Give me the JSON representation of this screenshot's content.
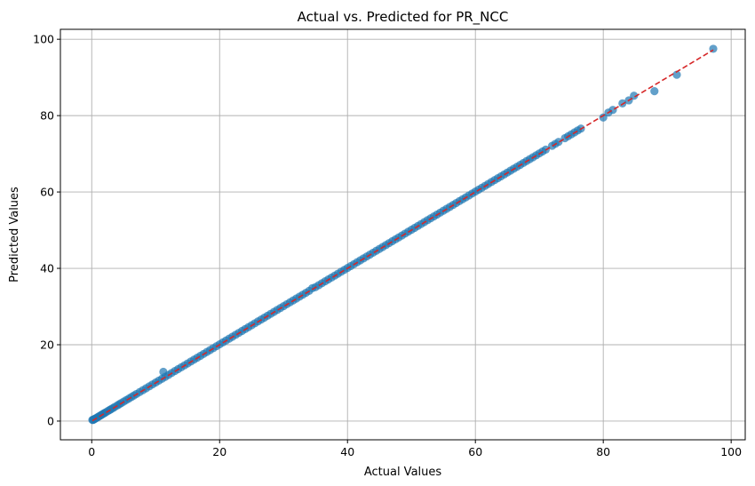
{
  "chart_data": {
    "type": "scatter",
    "title": "Actual vs. Predicted for PR_NCC",
    "xlabel": "Actual Values",
    "ylabel": "Predicted Values",
    "xlim": [
      -4.9,
      102.2
    ],
    "ylim": [
      -4.9,
      102.6
    ],
    "xticks": [
      0,
      20,
      40,
      60,
      80,
      100
    ],
    "yticks": [
      0,
      20,
      40,
      60,
      80,
      100
    ],
    "grid": true,
    "colors": {
      "points": "#1f77b4",
      "reference": "#d62728",
      "grid": "#b0b0b0"
    },
    "series": [
      {
        "kind": "points",
        "x": [
          0.1,
          0.2,
          0.3,
          0.4,
          0.5,
          0.6,
          0.8,
          1.0,
          1.2,
          1.4,
          1.6,
          1.8,
          2.0,
          2.2,
          2.5,
          2.8,
          3.0,
          3.3,
          3.6,
          4.0,
          4.3,
          4.6,
          5.0,
          5.4,
          5.8,
          6.2,
          6.6,
          7.0,
          7.5,
          8.0,
          8.5,
          9.0,
          9.5,
          10.0,
          10.5,
          11.0,
          11.2,
          11.5,
          12.0,
          12.5,
          13.0,
          13.5,
          14.0,
          14.5,
          15.0,
          15.5,
          16.0,
          16.5,
          17.0,
          17.5,
          18.0,
          18.5,
          19.0,
          19.5,
          20.0,
          20.5,
          21.0,
          21.5,
          22.0,
          22.5,
          23.0,
          23.5,
          24.0,
          24.5,
          25.0,
          25.5,
          26.0,
          26.5,
          27.0,
          27.5,
          28.0,
          28.5,
          29.0,
          29.5,
          30.0,
          30.5,
          31.0,
          31.5,
          32.0,
          32.5,
          33.0,
          33.5,
          34.0,
          34.5,
          35.0,
          35.5,
          36.0,
          36.5,
          37.0,
          37.5,
          38.0,
          38.5,
          39.0,
          39.5,
          40.0,
          40.5,
          41.0,
          41.5,
          42.0,
          42.5,
          43.0,
          43.5,
          44.0,
          44.5,
          45.0,
          45.5,
          46.0,
          46.5,
          47.0,
          47.5,
          48.0,
          48.5,
          49.0,
          49.5,
          50.0,
          50.5,
          51.0,
          51.5,
          52.0,
          52.5,
          53.0,
          53.5,
          54.0,
          54.5,
          55.0,
          55.5,
          56.0,
          56.5,
          57.0,
          57.5,
          58.0,
          58.5,
          59.0,
          59.5,
          60.0,
          60.5,
          61.0,
          61.5,
          62.0,
          62.5,
          63.0,
          63.5,
          64.0,
          64.5,
          65.0,
          65.5,
          66.0,
          66.5,
          67.0,
          67.5,
          68.0,
          68.5,
          69.0,
          69.5,
          70.0,
          70.5,
          71.0,
          72.0,
          72.5,
          73.0,
          74.0,
          74.5,
          75.0,
          75.5,
          76.0,
          76.5,
          80.0,
          80.8,
          81.5,
          83.0,
          84.0,
          84.8,
          88.0,
          91.5,
          97.2
        ],
        "y": [
          0.3,
          0.3,
          0.4,
          0.5,
          0.6,
          0.7,
          0.9,
          1.1,
          1.3,
          1.5,
          1.7,
          1.9,
          2.1,
          2.3,
          2.6,
          2.9,
          3.1,
          3.4,
          3.7,
          4.1,
          4.4,
          4.7,
          5.1,
          5.5,
          5.9,
          6.3,
          6.7,
          7.1,
          7.6,
          8.1,
          8.6,
          9.1,
          9.6,
          10.1,
          10.6,
          11.1,
          12.9,
          11.6,
          12.1,
          12.6,
          13.1,
          13.6,
          14.1,
          14.6,
          15.1,
          15.6,
          16.1,
          16.6,
          17.1,
          17.6,
          18.1,
          18.6,
          19.1,
          19.6,
          20.1,
          20.6,
          21.1,
          21.6,
          22.1,
          22.6,
          23.1,
          23.6,
          24.1,
          24.6,
          25.1,
          25.6,
          26.1,
          26.6,
          27.1,
          27.6,
          28.1,
          28.6,
          29.1,
          29.6,
          30.1,
          30.6,
          31.1,
          31.6,
          32.1,
          32.6,
          33.1,
          33.6,
          34.1,
          34.8,
          35.1,
          35.6,
          36.1,
          36.6,
          37.1,
          37.6,
          38.1,
          38.6,
          39.1,
          39.6,
          40.1,
          40.6,
          41.1,
          41.6,
          42.1,
          42.6,
          43.1,
          43.6,
          44.1,
          44.6,
          45.1,
          45.6,
          46.1,
          46.6,
          47.1,
          47.6,
          48.1,
          48.6,
          49.1,
          49.6,
          50.1,
          50.6,
          51.1,
          51.6,
          52.1,
          52.6,
          53.1,
          53.6,
          54.1,
          54.6,
          55.1,
          55.6,
          56.1,
          56.6,
          57.1,
          57.6,
          58.1,
          58.6,
          59.1,
          59.6,
          60.1,
          60.6,
          61.1,
          61.6,
          62.1,
          62.6,
          63.1,
          63.6,
          64.1,
          64.6,
          65.1,
          65.6,
          66.1,
          66.6,
          67.1,
          67.6,
          68.1,
          68.6,
          69.1,
          69.6,
          70.1,
          70.6,
          71.1,
          72.1,
          72.6,
          73.1,
          74.1,
          74.6,
          75.1,
          75.6,
          76.1,
          76.6,
          79.5,
          80.8,
          81.5,
          83.2,
          84.0,
          85.2,
          86.4,
          90.7,
          97.5
        ]
      },
      {
        "kind": "reference-line",
        "x": [
          0.1,
          97.2
        ],
        "y": [
          0.1,
          97.2
        ]
      }
    ]
  }
}
